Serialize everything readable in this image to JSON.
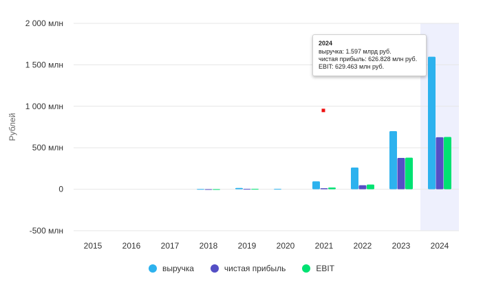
{
  "header_cut_text": "",
  "chart_data": {
    "type": "bar",
    "categories": [
      "2015",
      "2016",
      "2017",
      "2018",
      "2019",
      "2020",
      "2021",
      "2022",
      "2023",
      "2024"
    ],
    "series": [
      {
        "name": "выручка",
        "color": "#2db2ee",
        "values": [
          0,
          0,
          0,
          3,
          15,
          5,
          95,
          262,
          700,
          1597
        ]
      },
      {
        "name": "чистая прибыль",
        "color": "#544fc5",
        "values": [
          0,
          0,
          0,
          1,
          5,
          0,
          12,
          48,
          378,
          626.8
        ]
      },
      {
        "name": "EBIT",
        "color": "#00e272",
        "values": [
          0,
          0,
          0,
          1,
          5,
          0,
          20,
          57,
          381,
          629.5
        ]
      }
    ],
    "ylabel": "Рублей",
    "ylim": [
      -500,
      2000
    ],
    "yticks": [
      -500,
      0,
      500,
      1000,
      1500,
      2000
    ],
    "ytick_labels": [
      "-500 млн",
      "0",
      "500 млн",
      "1 000 млн",
      "1 500 млн",
      "2 000 млн"
    ],
    "grid": true,
    "legend_position": "bottom",
    "highlight_category": "2024",
    "highlight_color": "#eef0fd",
    "marker_color": "#ee1111",
    "marker_point": {
      "x": "2021",
      "y": 950
    },
    "tooltip": {
      "title": "2024",
      "lines": [
        "выручка: 1.597 млрд руб.",
        "чистая прибыль: 626.828 млн руб.",
        "EBIT: 629.463 млн руб."
      ]
    }
  }
}
